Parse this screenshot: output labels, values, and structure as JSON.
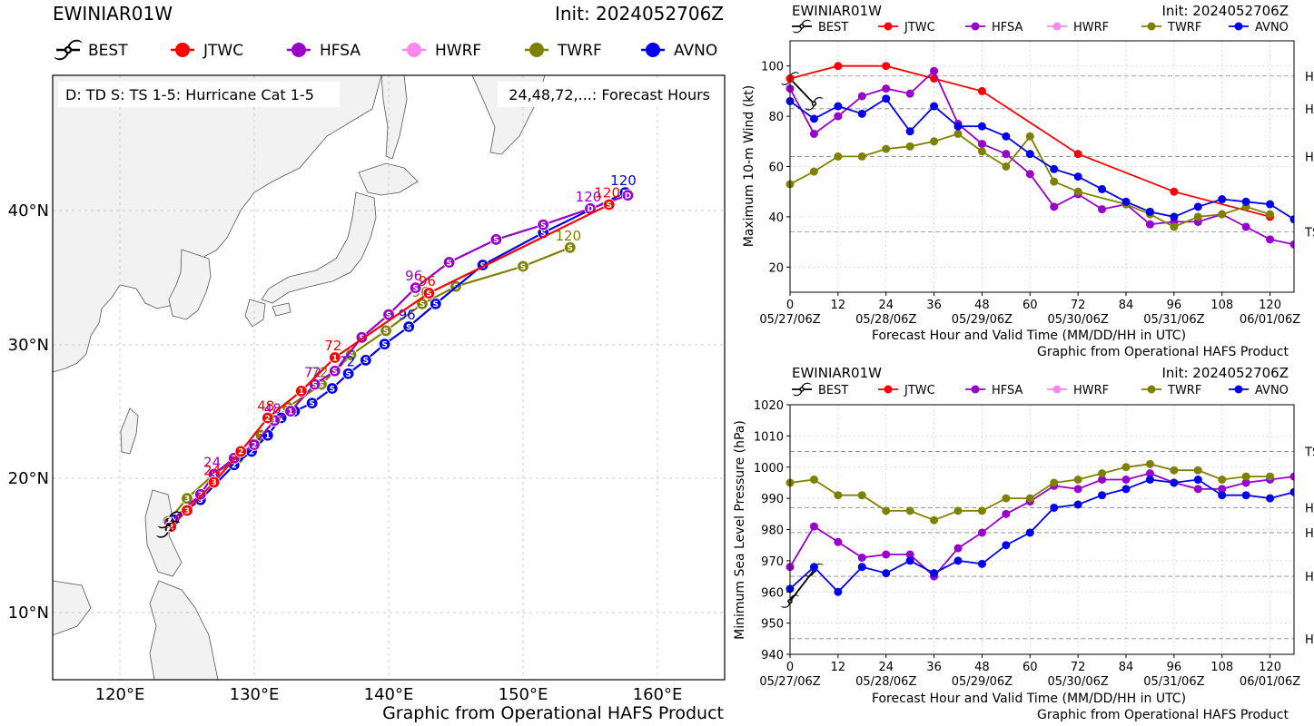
{
  "colors": {
    "BEST": "#000000",
    "JTWC": "#ff0000",
    "HFSA": "#9900cc",
    "HWRF": "#ff88ee",
    "TWRF": "#808000",
    "AVNO": "#0000ee"
  },
  "map": {
    "storm_name": "EWINIAR01W",
    "init": "Init: 2024052706Z",
    "legend": [
      "BEST",
      "JTWC",
      "HFSA",
      "HWRF",
      "TWRF",
      "AVNO"
    ],
    "key_text": "D: TD  S: TS  1-5: Hurricane Cat 1-5",
    "hours_text": "24,48,72,...: Forecast Hours",
    "footer": "Graphic from Operational HAFS Product",
    "lon_labels": [
      "120°E",
      "130°E",
      "140°E",
      "150°E",
      "160°E"
    ],
    "lat_labels": [
      "40°N",
      "30°N",
      "20°N",
      "10°N"
    ]
  },
  "wind_chart": {
    "title_left": "EWINIAR01W",
    "title_right": "Init: 2024052706Z",
    "ylabel": "Maximum 10-m Wind (kt)",
    "xlabel": "Forecast Hour and Valid Time (MM/DD/HH in UTC)",
    "footer": "Graphic from Operational HAFS Product",
    "date_labels": [
      "05/27/06Z",
      "05/28/06Z",
      "05/29/06Z",
      "05/30/06Z",
      "05/31/06Z",
      "06/01/06Z"
    ]
  },
  "pres_chart": {
    "title_left": "EWINIAR01W",
    "title_right": "Init: 2024052706Z",
    "ylabel": "Minimum Sea Level Pressure (hPa)",
    "xlabel": "Forecast Hour and Valid Time (MM/DD/HH in UTC)",
    "footer": "Graphic from Operational HAFS Product",
    "date_labels": [
      "05/27/06Z",
      "05/28/06Z",
      "05/29/06Z",
      "05/30/06Z",
      "05/31/06Z",
      "06/01/06Z"
    ]
  },
  "chart_data": [
    {
      "type": "line",
      "title": "Maximum 10-m Wind (kt)",
      "xlabel": "Forecast Hour and Valid Time (MM/DD/HH in UTC)",
      "ylabel": "Maximum 10-m Wind (kt)",
      "xlim": [
        0,
        126
      ],
      "ylim": [
        10,
        110
      ],
      "xticks": [
        0,
        12,
        24,
        36,
        48,
        60,
        72,
        84,
        96,
        108,
        120
      ],
      "yticks": [
        20,
        40,
        60,
        80,
        100
      ],
      "ref_lines": [
        {
          "label": "TS",
          "value": 34
        },
        {
          "label": "H1",
          "value": 64
        },
        {
          "label": "H2",
          "value": 83
        },
        {
          "label": "H3",
          "value": 96
        }
      ],
      "series": [
        {
          "name": "BEST",
          "x": [
            0,
            6
          ],
          "y": [
            95,
            85
          ]
        },
        {
          "name": "JTWC",
          "x": [
            0,
            12,
            24,
            36,
            48,
            72,
            96,
            120
          ],
          "y": [
            95,
            100,
            100,
            95,
            90,
            65,
            50,
            40
          ]
        },
        {
          "name": "HFSA",
          "x": [
            0,
            6,
            12,
            18,
            24,
            30,
            36,
            42,
            48,
            54,
            60,
            66,
            72,
            78,
            84,
            90,
            96,
            102,
            108,
            114,
            120,
            126
          ],
          "y": [
            91,
            73,
            80,
            88,
            91,
            89,
            98,
            77,
            69,
            65,
            57,
            44,
            49,
            43,
            45,
            37,
            38,
            38,
            41,
            36,
            31,
            29
          ]
        },
        {
          "name": "HWRF",
          "x": [],
          "y": []
        },
        {
          "name": "TWRF",
          "x": [
            0,
            6,
            12,
            18,
            24,
            30,
            36,
            42,
            48,
            54,
            60,
            66,
            72,
            84,
            90,
            96,
            102,
            108,
            114,
            120
          ],
          "y": [
            53,
            58,
            64,
            64,
            67,
            68,
            70,
            73,
            66,
            60,
            72,
            54,
            50,
            45,
            41,
            36,
            40,
            41,
            44,
            41
          ]
        },
        {
          "name": "AVNO",
          "x": [
            0,
            6,
            12,
            18,
            24,
            30,
            36,
            42,
            48,
            54,
            60,
            66,
            72,
            78,
            84,
            90,
            96,
            102,
            108,
            114,
            120,
            126
          ],
          "y": [
            86,
            79,
            84,
            81,
            87,
            74,
            84,
            76,
            76,
            72,
            65,
            59,
            56,
            51,
            46,
            42,
            40,
            44,
            47,
            46,
            45,
            39
          ]
        }
      ]
    },
    {
      "type": "line",
      "title": "Minimum Sea Level Pressure (hPa)",
      "xlabel": "Forecast Hour and Valid Time (MM/DD/HH in UTC)",
      "ylabel": "Minimum Sea Level Pressure (hPa)",
      "xlim": [
        0,
        126
      ],
      "ylim": [
        940,
        1020
      ],
      "xticks": [
        0,
        12,
        24,
        36,
        48,
        60,
        72,
        84,
        96,
        108,
        120
      ],
      "yticks": [
        940,
        950,
        960,
        970,
        980,
        990,
        1000,
        1010,
        1020
      ],
      "ref_lines": [
        {
          "label": "TS",
          "value": 1005
        },
        {
          "label": "H1",
          "value": 987
        },
        {
          "label": "H2",
          "value": 979
        },
        {
          "label": "H3",
          "value": 965
        },
        {
          "label": "H4",
          "value": 945
        }
      ],
      "series": [
        {
          "name": "BEST",
          "x": [
            0,
            6
          ],
          "y": [
            957,
            967
          ]
        },
        {
          "name": "JTWC",
          "x": [],
          "y": []
        },
        {
          "name": "HFSA",
          "x": [
            0,
            6,
            12,
            18,
            24,
            30,
            36,
            42,
            48,
            54,
            60,
            66,
            72,
            78,
            84,
            90,
            96,
            102,
            108,
            114,
            120,
            126
          ],
          "y": [
            968,
            981,
            976,
            971,
            972,
            972,
            965,
            974,
            979,
            985,
            989,
            994,
            993,
            996,
            996,
            998,
            995,
            993,
            993,
            995,
            996,
            997
          ]
        },
        {
          "name": "HWRF",
          "x": [],
          "y": []
        },
        {
          "name": "TWRF",
          "x": [
            0,
            6,
            12,
            18,
            24,
            30,
            36,
            42,
            48,
            54,
            60,
            66,
            72,
            78,
            84,
            90,
            96,
            102,
            108,
            114,
            120
          ],
          "y": [
            995,
            996,
            991,
            991,
            986,
            986,
            983,
            986,
            986,
            990,
            990,
            995,
            996,
            998,
            1000,
            1001,
            999,
            999,
            996,
            997,
            997
          ]
        },
        {
          "name": "AVNO",
          "x": [
            0,
            6,
            12,
            18,
            24,
            30,
            36,
            42,
            48,
            54,
            60,
            66,
            72,
            78,
            84,
            90,
            96,
            102,
            108,
            114,
            120,
            126
          ],
          "y": [
            961,
            968,
            960,
            968,
            966,
            970,
            966,
            970,
            969,
            975,
            979,
            987,
            988,
            991,
            993,
            996,
            995,
            996,
            991,
            991,
            990,
            992
          ]
        }
      ]
    },
    {
      "type": "scatter",
      "title": "EWINIAR01W track forecast map",
      "xlabel": "Longitude (°E)",
      "ylabel": "Latitude (°N)",
      "xlim": [
        115,
        165
      ],
      "ylim": [
        5,
        48
      ],
      "series": [
        {
          "name": "BEST",
          "lon": [
            123.6,
            123.7
          ],
          "lat": [
            16.2,
            16.9
          ],
          "symbols": [
            "2",
            "2"
          ]
        },
        {
          "name": "JTWC",
          "lon": [
            123.8,
            125.0,
            127.0,
            129.0,
            131.0,
            133.5,
            136.0,
            143.0,
            156.4
          ],
          "lat": [
            16.4,
            17.6,
            19.7,
            22.0,
            24.5,
            26.5,
            29.0,
            33.8,
            40.4
          ],
          "symbols": [
            "2",
            "3",
            "3",
            "2",
            "2",
            "1",
            "1",
            "S",
            "S"
          ],
          "labels": [
            "",
            "",
            "24",
            "",
            "48",
            "",
            "72",
            "96",
            "120"
          ]
        },
        {
          "name": "HFSA",
          "lon": [
            123.7,
            126.0,
            127.0,
            128.5,
            130.0,
            131.5,
            132.7,
            134.5,
            136.0,
            138.0,
            140.0,
            142.0,
            144.5,
            148.0,
            151.5,
            155.0,
            157.8
          ],
          "lat": [
            16.7,
            18.8,
            20.3,
            21.5,
            22.5,
            24.3,
            25.0,
            27.0,
            28.0,
            30.5,
            32.2,
            34.2,
            36.1,
            37.8,
            38.9,
            40.1,
            41.1
          ],
          "symbols": [
            "2",
            "3",
            "3",
            "2",
            "2",
            "1",
            "1",
            "S",
            "S",
            "S",
            "S",
            "S",
            "S",
            "S",
            "S",
            "D",
            "D"
          ],
          "labels": [
            "",
            "",
            "24",
            "",
            "",
            "48",
            "",
            "72",
            "",
            "",
            "",
            "96",
            "",
            "",
            "",
            "120",
            ""
          ]
        },
        {
          "name": "TWRF",
          "lon": [
            123.6,
            125.0,
            127.0,
            128.8,
            130.5,
            132.5,
            135.0,
            137.2,
            139.8,
            142.5,
            145.0,
            150.0,
            153.5
          ],
          "lat": [
            16.8,
            18.5,
            20.3,
            21.5,
            23.2,
            25.3,
            27.0,
            29.2,
            31.0,
            33.0,
            34.3,
            35.8,
            37.2
          ],
          "symbols": [
            "2",
            "3",
            "3",
            "2",
            "2",
            "1",
            "S",
            "S",
            "S",
            "S",
            "S",
            "S",
            "S"
          ],
          "labels": [
            "",
            "",
            "",
            "",
            "",
            "",
            "72",
            "",
            "",
            "96",
            "",
            "",
            "120"
          ]
        },
        {
          "name": "AVNO",
          "lon": [
            124.0,
            126.0,
            128.5,
            129.8,
            131.0,
            132.0,
            133.0,
            134.3,
            135.8,
            137.0,
            138.3,
            139.7,
            141.5,
            143.5,
            147.0,
            151.5,
            157.6
          ],
          "lat": [
            16.9,
            18.4,
            21.0,
            22.0,
            23.2,
            24.5,
            25.0,
            25.6,
            26.7,
            27.8,
            28.8,
            30.0,
            31.3,
            33.0,
            35.9,
            38.3,
            41.3
          ],
          "symbols": [
            "2",
            "3",
            "2",
            "2",
            "1",
            "1",
            "1",
            "S",
            "S",
            "S",
            "S",
            "S",
            "S",
            "S",
            "S",
            "S",
            "D"
          ],
          "labels": [
            "",
            "",
            "",
            "",
            "",
            "",
            "",
            "",
            "",
            "72",
            "",
            "",
            "96",
            "",
            "",
            "",
            "120"
          ]
        }
      ]
    }
  ]
}
